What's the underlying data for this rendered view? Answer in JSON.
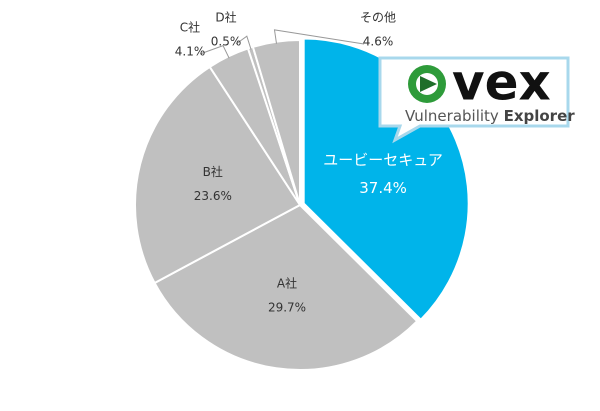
{
  "chart_data": {
    "type": "pie",
    "categories": [
      "ユービーセキュア",
      "A社",
      "B社",
      "C社",
      "D社",
      "その他"
    ],
    "values": [
      37.4,
      29.7,
      23.6,
      4.1,
      0.5,
      4.6
    ],
    "value_labels": [
      "37.4%",
      "29.7%",
      "23.6%",
      "4.1%",
      "0.5%",
      "4.6%"
    ],
    "colors": [
      "#00b4ea",
      "#c0c0c0",
      "#c0c0c0",
      "#c0c0c0",
      "#c0c0c0",
      "#c0c0c0"
    ],
    "logo": {
      "name": "vex",
      "tagline": [
        "Vulnerability",
        "Explorer"
      ]
    }
  }
}
